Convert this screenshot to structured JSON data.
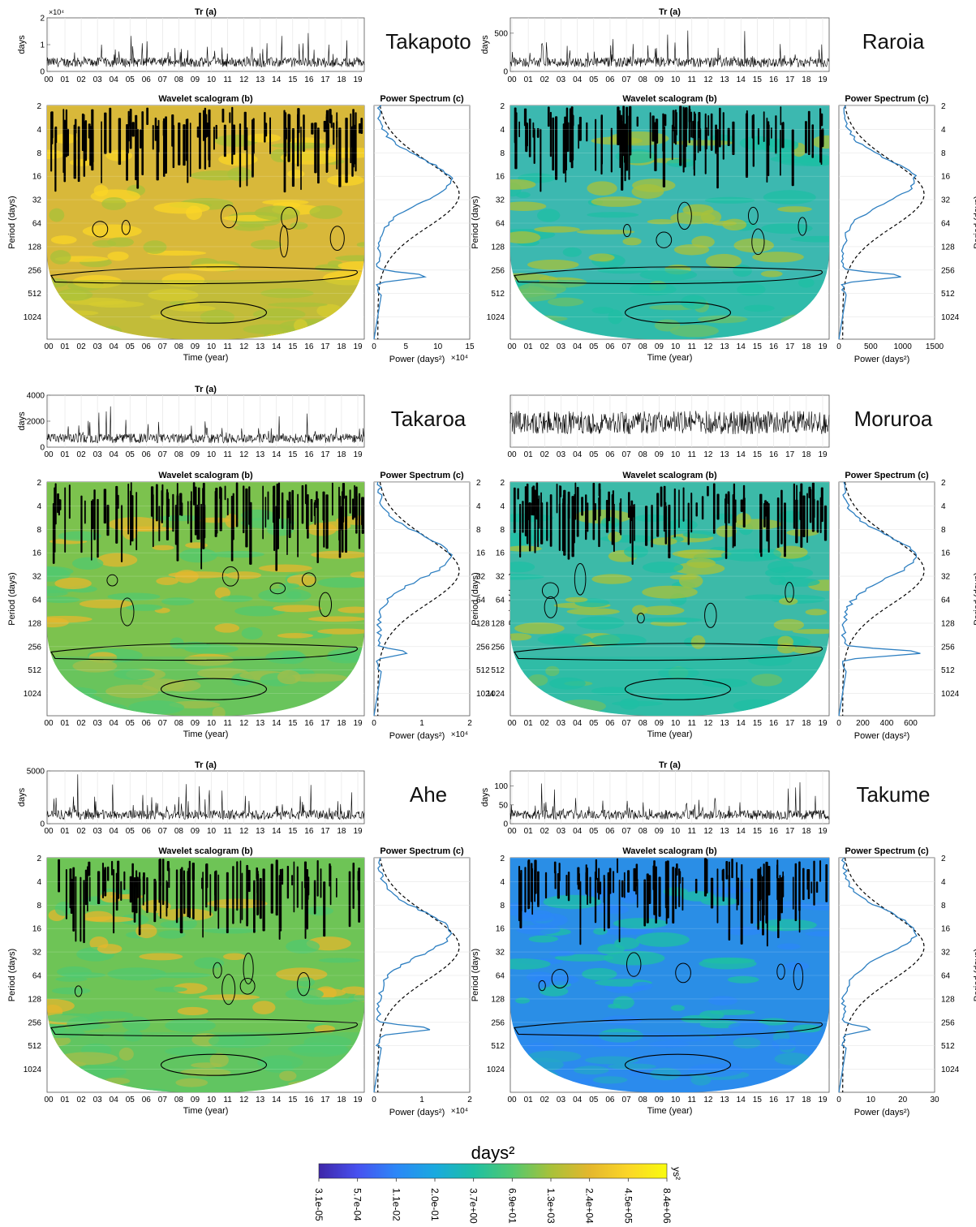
{
  "figure": {
    "colorbar": {
      "label": "days²",
      "side_label": "ys²",
      "ticks": [
        "3.1e-05",
        "5.7e-04",
        "1.1e-02",
        "2.0e-01",
        "3.7e+00",
        "6.9e+01",
        "1.3e+03",
        "2.4e+04",
        "4.5e+05",
        "8.4e+06"
      ],
      "colors": [
        "#3e26a8",
        "#4751f0",
        "#2c87f7",
        "#1aa9df",
        "#1ebfa4",
        "#52c86f",
        "#a8c13a",
        "#e4b72d",
        "#fbd627",
        "#f9fb0e"
      ]
    }
  },
  "chart_data": [
    {
      "site": "Takapoto",
      "type": "line",
      "panel_a": {
        "title": "Tr (a)",
        "ylabel": "days",
        "exponent": "×10⁴",
        "yticks": [
          "0",
          "1",
          "2"
        ],
        "ylim": [
          0,
          20000
        ]
      },
      "panel_b": {
        "title": "Wavelet scalogram (b)",
        "ylabel": "Period (days)",
        "xlabel": "Time (year)",
        "dominant_level": "high"
      },
      "panel_c": {
        "title": "Power Spectrum (c)",
        "xlabel": "Power (days²)",
        "exponent": "×10⁴",
        "xticks": [
          "0",
          "5",
          "10",
          "15"
        ],
        "xlim": [
          0,
          150000
        ],
        "show_right_axis": false,
        "annual_peak": 82000
      },
      "colors": {
        "scalogram_base": "#d8b83a",
        "scalogram_alt": "#e4b72d"
      }
    },
    {
      "site": "Raroia",
      "type": "line",
      "panel_a": {
        "title": "Tr (a)",
        "ylabel": "days",
        "exponent": "",
        "yticks": [
          "0",
          "500"
        ],
        "ylim": [
          0,
          700
        ]
      },
      "panel_b": {
        "title": "Wavelet scalogram (b)",
        "ylabel": "Period (days)",
        "xlabel": "Time (year)",
        "dominant_level": "mid"
      },
      "panel_c": {
        "title": "Power Spectrum (c)",
        "xlabel": "Power (days²)",
        "exponent": "",
        "xticks": [
          "0",
          "500",
          "1000",
          "1500"
        ],
        "xlim": [
          0,
          1500
        ],
        "show_right_axis": true,
        "annual_peak": 1000
      },
      "colors": {
        "scalogram_base": "#3cb8b0",
        "scalogram_alt": "#52c86f"
      }
    },
    {
      "site": "Takaroa",
      "type": "line",
      "panel_a": {
        "title": "Tr (a)",
        "ylabel": "days",
        "exponent": "",
        "yticks": [
          "0",
          "2000",
          "4000"
        ],
        "ylim": [
          0,
          4000
        ]
      },
      "panel_b": {
        "title": "Wavelet scalogram (b)",
        "ylabel": "Period (days)",
        "xlabel": "Time (year)",
        "dominant_level": "high-mid"
      },
      "panel_c": {
        "title": "Power Spectrum (c)",
        "xlabel": "Power (days²)",
        "exponent": "×10⁴",
        "xticks": [
          "0",
          "1",
          "2"
        ],
        "xlim": [
          0,
          20000
        ],
        "show_right_axis": true,
        "annual_peak": 7000
      },
      "colors": {
        "scalogram_base": "#7cc24e",
        "scalogram_alt": "#a8c13a"
      }
    },
    {
      "site": "Moruroa",
      "type": "line",
      "panel_a": {
        "title": "",
        "ylabel": "",
        "exponent": "",
        "yticks": [],
        "ylim": [
          0,
          1
        ]
      },
      "panel_b": {
        "title": "Wavelet scalogram (b)",
        "ylabel": "Period (days)",
        "xlabel": "Time (year)",
        "dominant_level": "mid"
      },
      "panel_c": {
        "title": "Power Spectrum (c)",
        "xlabel": "Power (days²)",
        "exponent": "",
        "xticks": [
          "0",
          "200",
          "400",
          "600"
        ],
        "xlim": [
          0,
          800
        ],
        "show_right_axis": true,
        "annual_peak": 700
      },
      "colors": {
        "scalogram_base": "#3cbaa8",
        "scalogram_alt": "#52c86f"
      }
    },
    {
      "site": "Ahe",
      "type": "line",
      "panel_a": {
        "title": "Tr (a)",
        "ylabel": "days",
        "exponent": "",
        "yticks": [
          "0",
          "5000"
        ],
        "ylim": [
          0,
          5000
        ]
      },
      "panel_b": {
        "title": "Wavelet scalogram (b)",
        "ylabel": "Period (days)",
        "xlabel": "Time (year)",
        "dominant_level": "high-mid"
      },
      "panel_c": {
        "title": "Power Spectrum (c)",
        "xlabel": "Power (days²)",
        "exponent": "×10⁴",
        "xticks": [
          "0",
          "1",
          "2"
        ],
        "xlim": [
          0,
          20000
        ],
        "show_right_axis": false,
        "annual_peak": 12000
      },
      "colors": {
        "scalogram_base": "#6ec456",
        "scalogram_alt": "#a8c13a"
      }
    },
    {
      "site": "Takume",
      "type": "line",
      "panel_a": {
        "title": "Tr (a)",
        "ylabel": "days",
        "exponent": "",
        "yticks": [
          "0",
          "50",
          "100"
        ],
        "ylim": [
          0,
          140
        ]
      },
      "panel_b": {
        "title": "Wavelet scalogram (b)",
        "ylabel": "Period (days)",
        "xlabel": "Time (year)",
        "dominant_level": "low"
      },
      "panel_c": {
        "title": "Power Spectrum (c)",
        "xlabel": "Power (days²)",
        "exponent": "",
        "xticks": [
          "0",
          "10",
          "20",
          "30"
        ],
        "xlim": [
          0,
          30
        ],
        "show_right_axis": true,
        "annual_peak": 10
      },
      "colors": {
        "scalogram_base": "#2a8ee6",
        "scalogram_alt": "#1aa9df"
      }
    }
  ],
  "shared_axes": {
    "years": [
      "00",
      "01",
      "02",
      "03",
      "04",
      "05",
      "06",
      "07",
      "08",
      "09",
      "10",
      "11",
      "12",
      "13",
      "14",
      "15",
      "16",
      "17",
      "18",
      "19"
    ],
    "periods": [
      2,
      4,
      8,
      16,
      32,
      64,
      128,
      256,
      512,
      1024
    ]
  }
}
